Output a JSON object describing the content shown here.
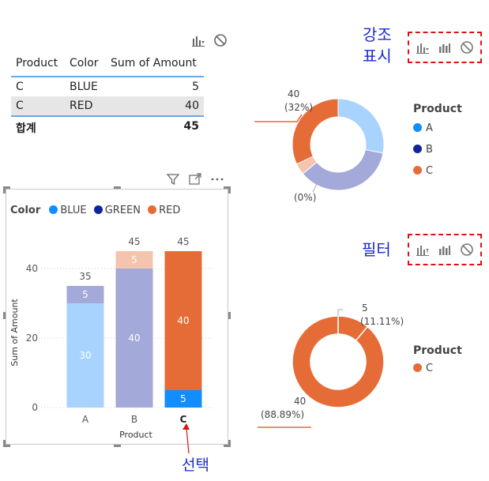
{
  "table": {
    "headers": [
      "Product",
      "Color",
      "Sum of Amount"
    ],
    "rows": [
      {
        "product": "C",
        "color": "BLUE",
        "amount": "5"
      },
      {
        "product": "C",
        "color": "RED",
        "amount": "40"
      }
    ],
    "total_label": "합계",
    "total_value": "45"
  },
  "annotations": {
    "highlight_label_line1": "강조",
    "highlight_label_line2": "표시",
    "filter_label": "필터",
    "select_label": "선택"
  },
  "colors": {
    "blue": "#118dff",
    "green": "#12239e",
    "red": "#e66c37",
    "faded_blue": "#a8d3ff",
    "faded_green": "#a3a9d8",
    "faded_red": "#f5c4ae",
    "annotation_blue": "#1a2ad0",
    "annotation_red": "#e01010"
  },
  "icons": {
    "visual_toolbar": [
      "highlight-icon",
      "bar-chart-icon",
      "none-icon"
    ],
    "header": [
      "filter-icon",
      "focus-mode-icon",
      "more-options-icon"
    ]
  },
  "bar_chart": {
    "legend_title": "Color",
    "legend": [
      "BLUE",
      "GREEN",
      "RED"
    ]
  },
  "donut_top": {
    "legend_title": "Product",
    "legend": [
      "A",
      "B",
      "C"
    ],
    "label_top": "40",
    "label_top_pct": "(32%)",
    "label_bottom": "(0%)"
  },
  "donut_bottom": {
    "legend_title": "Product",
    "legend": [
      "C"
    ],
    "label_top": "5",
    "label_top_pct": "(11.11%)",
    "label_bottom": "40",
    "label_bottom_pct": "(88.89%)"
  },
  "chart_data": [
    {
      "type": "bar",
      "stacked": true,
      "categories": [
        "A",
        "B",
        "C"
      ],
      "xlabel": "Product",
      "ylabel": "Sum of Amount",
      "ylim": [
        0,
        45
      ],
      "yticks": [
        0,
        20,
        40
      ],
      "grid": true,
      "legend_title": "Color",
      "legend_position": "top-left",
      "series": [
        {
          "name": "BLUE",
          "values": [
            30,
            0,
            5
          ]
        },
        {
          "name": "GREEN",
          "values": [
            5,
            40,
            0
          ]
        },
        {
          "name": "RED",
          "values": [
            0,
            5,
            40
          ]
        }
      ],
      "totals": [
        35,
        45,
        45
      ],
      "selected_category": "C"
    },
    {
      "type": "pie",
      "variant": "donut",
      "legend_title": "Product",
      "categories": [
        "A",
        "B",
        "C"
      ],
      "values": [
        35,
        45,
        45
      ],
      "highlighted_values": [
        0,
        0,
        40
      ],
      "highlighted_percent": [
        "",
        "(0%)",
        "(32%)"
      ]
    },
    {
      "type": "pie",
      "variant": "donut",
      "legend_title": "Product",
      "categories": [
        "C"
      ],
      "slices": [
        {
          "label": "5",
          "value": 5,
          "percent": "(11.11%)"
        },
        {
          "label": "40",
          "value": 40,
          "percent": "(88.89%)"
        }
      ]
    }
  ]
}
